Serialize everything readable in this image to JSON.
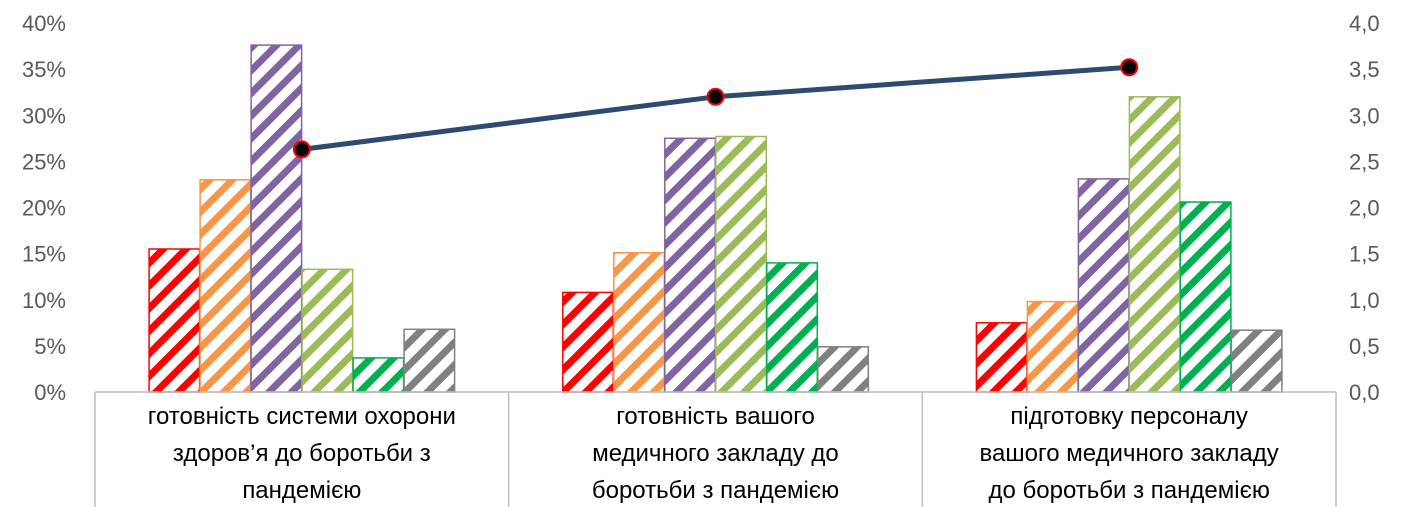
{
  "chart_data": {
    "type": "bar",
    "categories": [
      [
        "готовність системи охорони",
        "здоров’я до боротьби з",
        "пандемією"
      ],
      [
        "готовність вашого",
        "медичного закладу до",
        "боротьби з пандемією"
      ],
      [
        "підготовку персоналу",
        "вашого медичного закладу",
        "до боротьби з пандемією"
      ]
    ],
    "series": [
      {
        "color": "#ff0000",
        "values": [
          15.5,
          10.8,
          7.5
        ]
      },
      {
        "color": "#f79646",
        "values": [
          23.0,
          15.1,
          9.8
        ]
      },
      {
        "color": "#8064a2",
        "values": [
          37.6,
          27.5,
          23.1
        ]
      },
      {
        "color": "#9bbb59",
        "values": [
          13.3,
          27.7,
          32.0
        ]
      },
      {
        "color": "#00b050",
        "values": [
          3.7,
          14.0,
          20.6
        ]
      },
      {
        "color": "#808080",
        "values": [
          6.8,
          4.9,
          6.7
        ]
      }
    ],
    "line": {
      "color": "#2e4a6e",
      "marker_fill": "#000000",
      "marker_edge": "#ff0000",
      "values": [
        2.63,
        3.2,
        3.52
      ]
    },
    "ylim": [
      0,
      40
    ],
    "y2lim": [
      0,
      4
    ],
    "y_ticks": [
      "0%",
      "5%",
      "10%",
      "15%",
      "20%",
      "25%",
      "30%",
      "35%",
      "40%"
    ],
    "y2_ticks": [
      "0,0",
      "0,5",
      "1,0",
      "1,5",
      "2,0",
      "2,5",
      "3,0",
      "3,5",
      "4,0"
    ],
    "gridlines": false,
    "bar_fill": "diagonal-hatch"
  }
}
